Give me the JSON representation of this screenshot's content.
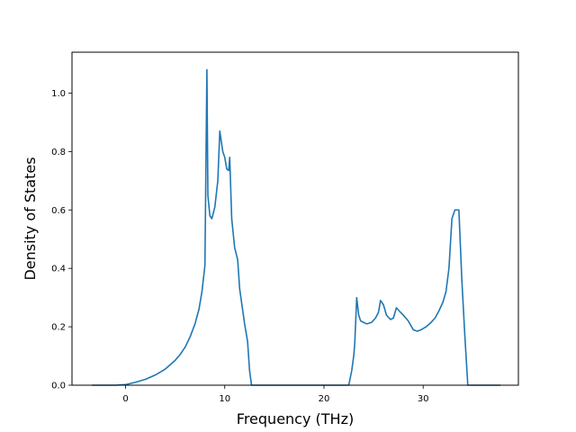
{
  "chart_data": {
    "type": "line",
    "title": "",
    "xlabel": "Frequency (THz)",
    "ylabel": "Density of States",
    "xlim": [
      -5.4,
      39.6
    ],
    "ylim": [
      0.0,
      1.14
    ],
    "xticks": [
      0,
      10,
      20,
      30
    ],
    "yticks": [
      0.0,
      0.2,
      0.4,
      0.6,
      0.8,
      1.0
    ],
    "xtick_labels": [
      "0",
      "10",
      "20",
      "30"
    ],
    "ytick_labels": [
      "0.0",
      "0.2",
      "0.4",
      "0.6",
      "0.8",
      "1.0"
    ],
    "grid": false,
    "legend": "none",
    "series": [
      {
        "color": "#1f77b4",
        "x": [
          -3.4,
          -1.0,
          0.0,
          1.0,
          2.0,
          3.0,
          4.0,
          5.0,
          5.5,
          6.0,
          6.5,
          7.0,
          7.4,
          7.7,
          8.0,
          8.2,
          8.3,
          8.5,
          8.7,
          9.0,
          9.3,
          9.5,
          9.8,
          10.0,
          10.2,
          10.4,
          10.5,
          10.7,
          11.0,
          11.3,
          11.5,
          12.0,
          12.3,
          12.5,
          12.7,
          13.0,
          15.0,
          20.0,
          22.5,
          22.8,
          23.0,
          23.1,
          23.3,
          23.5,
          23.7,
          24.0,
          24.3,
          24.8,
          25.2,
          25.5,
          25.7,
          26.0,
          26.3,
          26.7,
          27.0,
          27.3,
          27.7,
          28.0,
          28.5,
          29.0,
          29.4,
          29.8,
          30.3,
          30.8,
          31.2,
          31.6,
          32.0,
          32.3,
          32.6,
          32.9,
          33.2,
          33.4,
          33.6,
          33.9,
          34.2,
          34.5,
          35.0,
          37.8
        ],
        "y": [
          0.0,
          0.0,
          0.002,
          0.01,
          0.02,
          0.035,
          0.055,
          0.085,
          0.105,
          0.13,
          0.165,
          0.21,
          0.26,
          0.32,
          0.41,
          1.08,
          0.65,
          0.58,
          0.57,
          0.61,
          0.7,
          0.87,
          0.8,
          0.78,
          0.74,
          0.735,
          0.78,
          0.57,
          0.47,
          0.43,
          0.33,
          0.21,
          0.15,
          0.05,
          0.0,
          0.0,
          0.0,
          0.0,
          0.0,
          0.05,
          0.1,
          0.14,
          0.3,
          0.24,
          0.22,
          0.215,
          0.21,
          0.215,
          0.23,
          0.25,
          0.29,
          0.275,
          0.24,
          0.225,
          0.23,
          0.265,
          0.25,
          0.24,
          0.22,
          0.19,
          0.185,
          0.19,
          0.2,
          0.215,
          0.23,
          0.255,
          0.285,
          0.32,
          0.4,
          0.57,
          0.6,
          0.6,
          0.6,
          0.36,
          0.17,
          0.0,
          0.0,
          0.0
        ]
      }
    ]
  }
}
